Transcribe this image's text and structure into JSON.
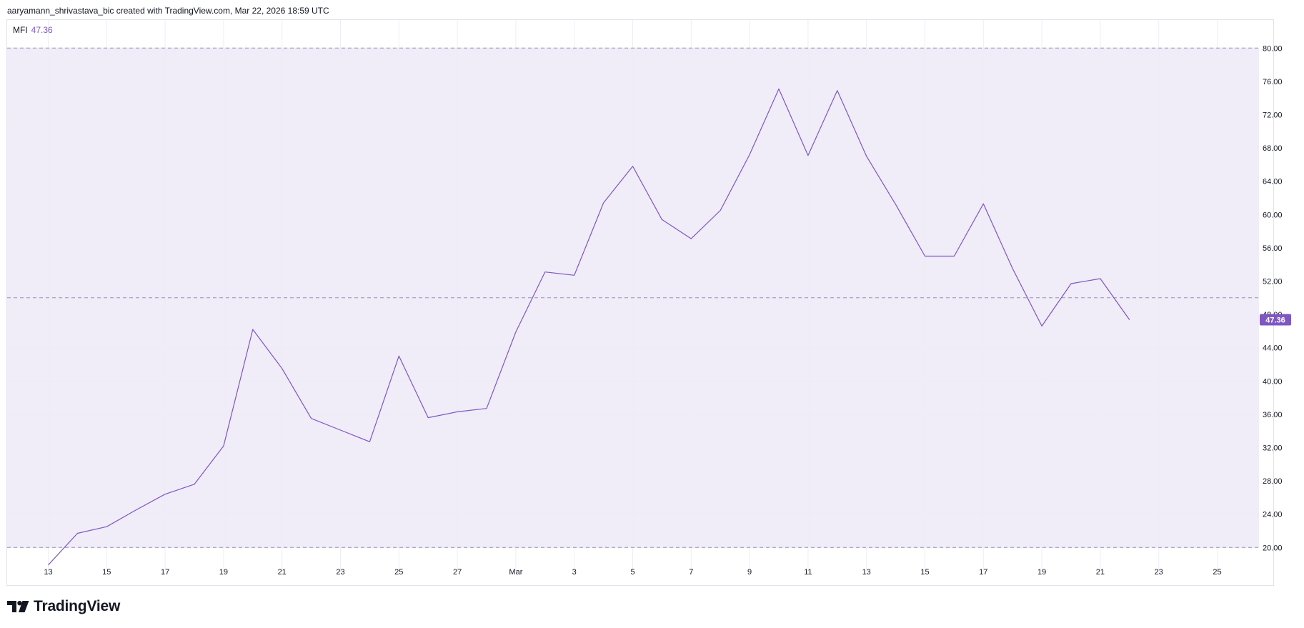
{
  "header": {
    "attribution": "aaryamann_shrivastava_bic created with TradingView.com, Mar 22, 2026 18:59 UTC"
  },
  "legend": {
    "name": "MFI",
    "value": "47.36"
  },
  "branding": {
    "name": "TradingView"
  },
  "colors": {
    "line": "#7e57c2",
    "band_fill": "#f0ecf8",
    "grid": "#eceef3",
    "dashed": "#9c8fb5",
    "axis_text": "#131722",
    "badge": "#7e57c2"
  },
  "chart_data": {
    "type": "line",
    "title": "",
    "xlabel": "",
    "ylabel": "",
    "ylim": [
      18,
      84
    ],
    "y_ticks": [
      20,
      24,
      28,
      32,
      36,
      40,
      44,
      48,
      52,
      56,
      60,
      64,
      68,
      72,
      76,
      80
    ],
    "y_tick_labels": [
      "20.00",
      "24.00",
      "28.00",
      "32.00",
      "36.00",
      "40.00",
      "44.00",
      "48.00",
      "52.00",
      "56.00",
      "60.00",
      "64.00",
      "68.00",
      "72.00",
      "76.00",
      "80.00"
    ],
    "x_ticks": [
      {
        "date": "2026-02-13",
        "label": "13"
      },
      {
        "date": "2026-02-15",
        "label": "15"
      },
      {
        "date": "2026-02-17",
        "label": "17"
      },
      {
        "date": "2026-02-19",
        "label": "19"
      },
      {
        "date": "2026-02-21",
        "label": "21"
      },
      {
        "date": "2026-02-23",
        "label": "23"
      },
      {
        "date": "2026-02-25",
        "label": "25"
      },
      {
        "date": "2026-02-27",
        "label": "27"
      },
      {
        "date": "2026-03-01",
        "label": "Mar"
      },
      {
        "date": "2026-03-03",
        "label": "3"
      },
      {
        "date": "2026-03-05",
        "label": "5"
      },
      {
        "date": "2026-03-07",
        "label": "7"
      },
      {
        "date": "2026-03-09",
        "label": "9"
      },
      {
        "date": "2026-03-11",
        "label": "11"
      },
      {
        "date": "2026-03-13",
        "label": "13"
      },
      {
        "date": "2026-03-15",
        "label": "15"
      },
      {
        "date": "2026-03-17",
        "label": "17"
      },
      {
        "date": "2026-03-19",
        "label": "19"
      },
      {
        "date": "2026-03-21",
        "label": "21"
      },
      {
        "date": "2026-03-23",
        "label": "23"
      },
      {
        "date": "2026-03-25",
        "label": "25"
      }
    ],
    "bands": {
      "upper": 80,
      "middle": 50,
      "lower": 20
    },
    "last_value_label": "47.36",
    "series": [
      {
        "name": "MFI",
        "points": [
          {
            "x": "2026-02-13",
            "y": 17.9
          },
          {
            "x": "2026-02-14",
            "y": 21.7
          },
          {
            "x": "2026-02-15",
            "y": 22.5
          },
          {
            "x": "2026-02-16",
            "y": 24.5
          },
          {
            "x": "2026-02-17",
            "y": 26.4
          },
          {
            "x": "2026-02-18",
            "y": 27.6
          },
          {
            "x": "2026-02-19",
            "y": 32.2
          },
          {
            "x": "2026-02-20",
            "y": 46.2
          },
          {
            "x": "2026-02-21",
            "y": 41.5
          },
          {
            "x": "2026-02-22",
            "y": 35.5
          },
          {
            "x": "2026-02-23",
            "y": 34.1
          },
          {
            "x": "2026-02-24",
            "y": 32.7
          },
          {
            "x": "2026-02-25",
            "y": 43.0
          },
          {
            "x": "2026-02-26",
            "y": 35.6
          },
          {
            "x": "2026-02-27",
            "y": 36.3
          },
          {
            "x": "2026-02-28",
            "y": 36.7
          },
          {
            "x": "2026-03-01",
            "y": 45.9
          },
          {
            "x": "2026-03-02",
            "y": 53.1
          },
          {
            "x": "2026-03-03",
            "y": 52.7
          },
          {
            "x": "2026-03-04",
            "y": 61.4
          },
          {
            "x": "2026-03-05",
            "y": 65.8
          },
          {
            "x": "2026-03-06",
            "y": 59.4
          },
          {
            "x": "2026-03-07",
            "y": 57.1
          },
          {
            "x": "2026-03-08",
            "y": 60.5
          },
          {
            "x": "2026-03-09",
            "y": 67.2
          },
          {
            "x": "2026-03-10",
            "y": 75.1
          },
          {
            "x": "2026-03-11",
            "y": 67.1
          },
          {
            "x": "2026-03-12",
            "y": 74.9
          },
          {
            "x": "2026-03-13",
            "y": 67.0
          },
          {
            "x": "2026-03-14",
            "y": 61.2
          },
          {
            "x": "2026-03-15",
            "y": 55.0
          },
          {
            "x": "2026-03-16",
            "y": 55.0
          },
          {
            "x": "2026-03-17",
            "y": 61.3
          },
          {
            "x": "2026-03-18",
            "y": 53.5
          },
          {
            "x": "2026-03-19",
            "y": 46.6
          },
          {
            "x": "2026-03-20",
            "y": 51.7
          },
          {
            "x": "2026-03-21",
            "y": 52.3
          },
          {
            "x": "2026-03-22",
            "y": 47.36
          }
        ]
      }
    ]
  }
}
